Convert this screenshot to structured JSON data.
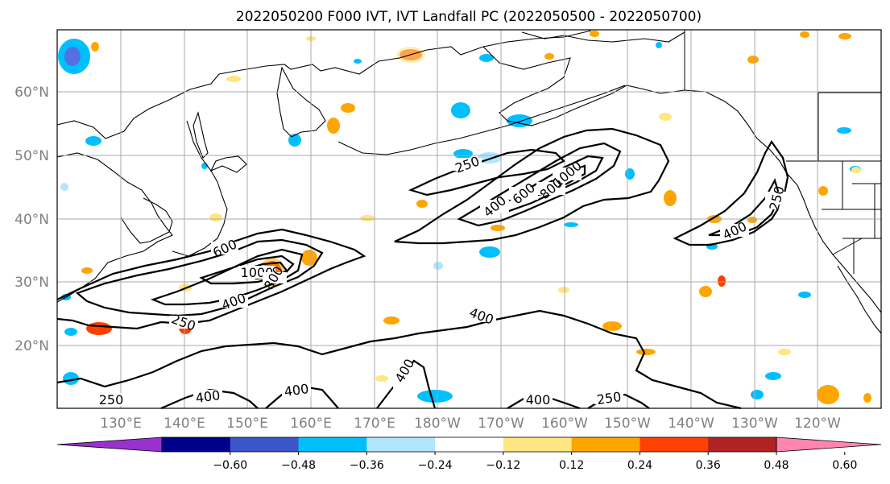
{
  "title": "2022050200 F000 IVT, IVT Landfall PC (2022050500 - 2022050700)",
  "map": {
    "lat_labels": [
      "60°N",
      "50°N",
      "40°N",
      "30°N",
      "20°N"
    ],
    "lon_labels": [
      "130°E",
      "140°E",
      "150°E",
      "160°E",
      "170°E",
      "180°W",
      "170°W",
      "160°W",
      "150°W",
      "140°W",
      "130°W",
      "120°W"
    ],
    "grid": true,
    "contour_levels": [
      "250",
      "400",
      "600",
      "1000"
    ],
    "contour_labels": [
      "250",
      "600",
      "1000",
      "800",
      "400",
      "250",
      "250",
      "400",
      "400",
      "600",
      "800",
      "1000",
      "250",
      "400",
      "400",
      "250",
      "400",
      "400",
      "400",
      "250"
    ]
  },
  "colorbar": {
    "ticks": [
      "−0.60",
      "−0.48",
      "−0.36",
      "−0.24",
      "−0.12",
      "0.12",
      "0.24",
      "0.36",
      "0.48",
      "0.60"
    ],
    "colors": [
      "#9932cc",
      "#00008b",
      "#3a56c8",
      "#00bfff",
      "#b2e5ff",
      "#ffffff",
      "#ffe680",
      "#ffa500",
      "#ff4000",
      "#b22222",
      "#ff85b0"
    ],
    "extend": "both"
  }
}
